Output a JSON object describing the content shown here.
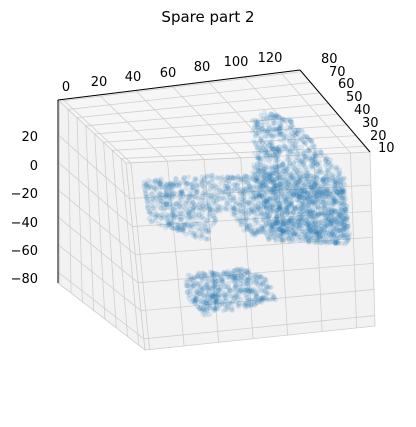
{
  "chart_data": {
    "type": "scatter",
    "subtype": "3d-voxel-point-cloud",
    "title": "Spare part 2",
    "xlabel": "",
    "ylabel": "",
    "zlabel": "",
    "x_ticks": [
      "0",
      "20",
      "40",
      "60",
      "80",
      "100",
      "120"
    ],
    "y_ticks": [
      "10",
      "20",
      "30",
      "40",
      "50",
      "60",
      "70",
      "80"
    ],
    "z_ticks": [
      "20",
      "0",
      "−20",
      "−40",
      "−60",
      "−80"
    ],
    "xlim": [
      0,
      125
    ],
    "ylim": [
      5,
      80
    ],
    "zlim": [
      -80,
      35
    ],
    "grid": true,
    "point_color": "#1f77b4",
    "series": [
      {
        "values": [
          {
            "x": [
              50,
              110
            ],
            "y": [
              10,
              75
            ],
            "z": [
              -25,
              5
            ]
          },
          {
            "x": [
              110,
              120
            ],
            "y": [
              10,
              75
            ],
            "z": [
              -25,
              30
            ]
          },
          {
            "x": [
              65,
              85
            ],
            "y": [
              10,
              75
            ],
            "z": [
              -80,
              -60
            ]
          }
        ]
      }
    ]
  }
}
